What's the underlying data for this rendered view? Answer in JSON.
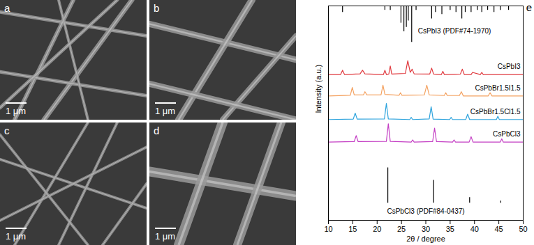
{
  "panels": [
    {
      "label": "a",
      "scale_bar": "1 μm"
    },
    {
      "label": "b",
      "scale_bar": "1 μm"
    },
    {
      "label": "c",
      "scale_bar": "1 μm"
    },
    {
      "label": "d",
      "scale_bar": "1 μm"
    }
  ],
  "chart_data": {
    "type": "line",
    "panel_label": "e",
    "x_label": "2θ / degree",
    "y_label": "Intensity (a.u.)",
    "xlim": [
      10,
      50
    ],
    "xticks": [
      10,
      15,
      20,
      25,
      30,
      35,
      40,
      45,
      50
    ],
    "ylim": [
      0,
      100
    ],
    "yticks": [],
    "tick_labels": "x",
    "grid": false,
    "series": [
      {
        "name": "CsPbI3 (PDF#74-1970)",
        "type": "stick",
        "color": "#000000",
        "base": 100,
        "x": [
          12.9,
          21.6,
          22.7,
          24.9,
          25.5,
          26.0,
          26.4,
          27.1,
          28.0,
          31.2,
          32.0,
          33.3,
          35.0,
          36.2,
          37.4,
          38.1,
          39.3,
          40.6,
          41.5,
          42.7,
          44.0,
          45.3,
          47.0
        ],
        "values": [
          97,
          98,
          98,
          92,
          88,
          90,
          93,
          83,
          98,
          94,
          97,
          96,
          98,
          97,
          94,
          97,
          97,
          98,
          97,
          98,
          97,
          98,
          98
        ]
      },
      {
        "name": "CsPbI3",
        "type": "line",
        "color": "#e0393e",
        "x": [
          10,
          12.5,
          12.9,
          13.3,
          16.5,
          17,
          17.5,
          21.3,
          21.6,
          21.9,
          22.4,
          22.7,
          23,
          25.8,
          26.3,
          26.8,
          27.2,
          27.6,
          30.8,
          31.2,
          31.6,
          33.2,
          33.5,
          33.8,
          37.1,
          37.5,
          37.9,
          39.3,
          39.6,
          41.2,
          41.5,
          41.8,
          50
        ],
        "values": [
          68,
          68,
          70,
          68,
          68.3,
          70,
          68.3,
          68,
          70,
          68,
          68.2,
          72,
          68.2,
          68.5,
          74.5,
          69,
          70.5,
          68.3,
          68.2,
          71,
          68.2,
          68,
          69.5,
          68,
          68.2,
          70.5,
          68,
          68,
          69,
          68,
          69,
          68,
          68
        ]
      },
      {
        "name": "CsPbBr1.5I1.5",
        "type": "line",
        "color": "#f4a261",
        "x": [
          10,
          14.5,
          14.9,
          15.3,
          17.2,
          17.5,
          17.9,
          20.8,
          21.2,
          21.6,
          24.5,
          24.8,
          25.1,
          29.7,
          30.2,
          30.7,
          33.8,
          34.1,
          34.4,
          36.9,
          37.3,
          37.7,
          42.8,
          43.2,
          43.6,
          50
        ],
        "values": [
          58,
          58.3,
          62,
          58.5,
          58.5,
          60,
          58.5,
          58.5,
          63,
          58.7,
          58.3,
          59.5,
          58.3,
          58.5,
          63,
          58.5,
          58.2,
          59.5,
          58.2,
          58.2,
          60,
          58,
          58,
          59.5,
          58,
          58
        ]
      },
      {
        "name": "CsPbBr1.5Cl1.5",
        "type": "line",
        "color": "#2fa4dd",
        "x": [
          10,
          15.1,
          15.5,
          15.9,
          21.5,
          21.9,
          22.3,
          26.7,
          27,
          27.3,
          30.7,
          31.1,
          31.5,
          34.9,
          35.2,
          35.5,
          38.2,
          38.6,
          39,
          44.5,
          44.8,
          45.1,
          50
        ],
        "values": [
          47,
          47.2,
          50,
          47.2,
          47.3,
          54.5,
          47.3,
          47,
          48,
          47,
          47.3,
          53,
          47.2,
          47,
          48,
          47,
          47,
          49.5,
          47,
          47,
          48.5,
          47,
          47
        ]
      },
      {
        "name": "CsPbCl3",
        "type": "line",
        "color": "#c43fc4",
        "x": [
          10,
          15.3,
          15.7,
          16.1,
          21.9,
          22.3,
          22.7,
          27,
          27.3,
          27.6,
          31.4,
          31.8,
          32.2,
          35.5,
          35.8,
          36.1,
          38.9,
          39.3,
          39.7,
          45.3,
          45.6,
          45.9,
          50
        ],
        "values": [
          36.5,
          36.7,
          39.5,
          36.7,
          36.8,
          45,
          36.8,
          36.5,
          37.5,
          36.5,
          36.7,
          43,
          36.7,
          36.5,
          37.5,
          36.5,
          36.5,
          39,
          36.5,
          36.5,
          38,
          36.5,
          36.5
        ]
      },
      {
        "name": "CsPbCl3 (PDF#84-0437)",
        "type": "stick",
        "color": "#000000",
        "base": 8,
        "x": [
          22.2,
          31.6,
          39.0,
          45.4
        ],
        "values": [
          24.5,
          18.7,
          10.6,
          9
        ]
      }
    ]
  }
}
